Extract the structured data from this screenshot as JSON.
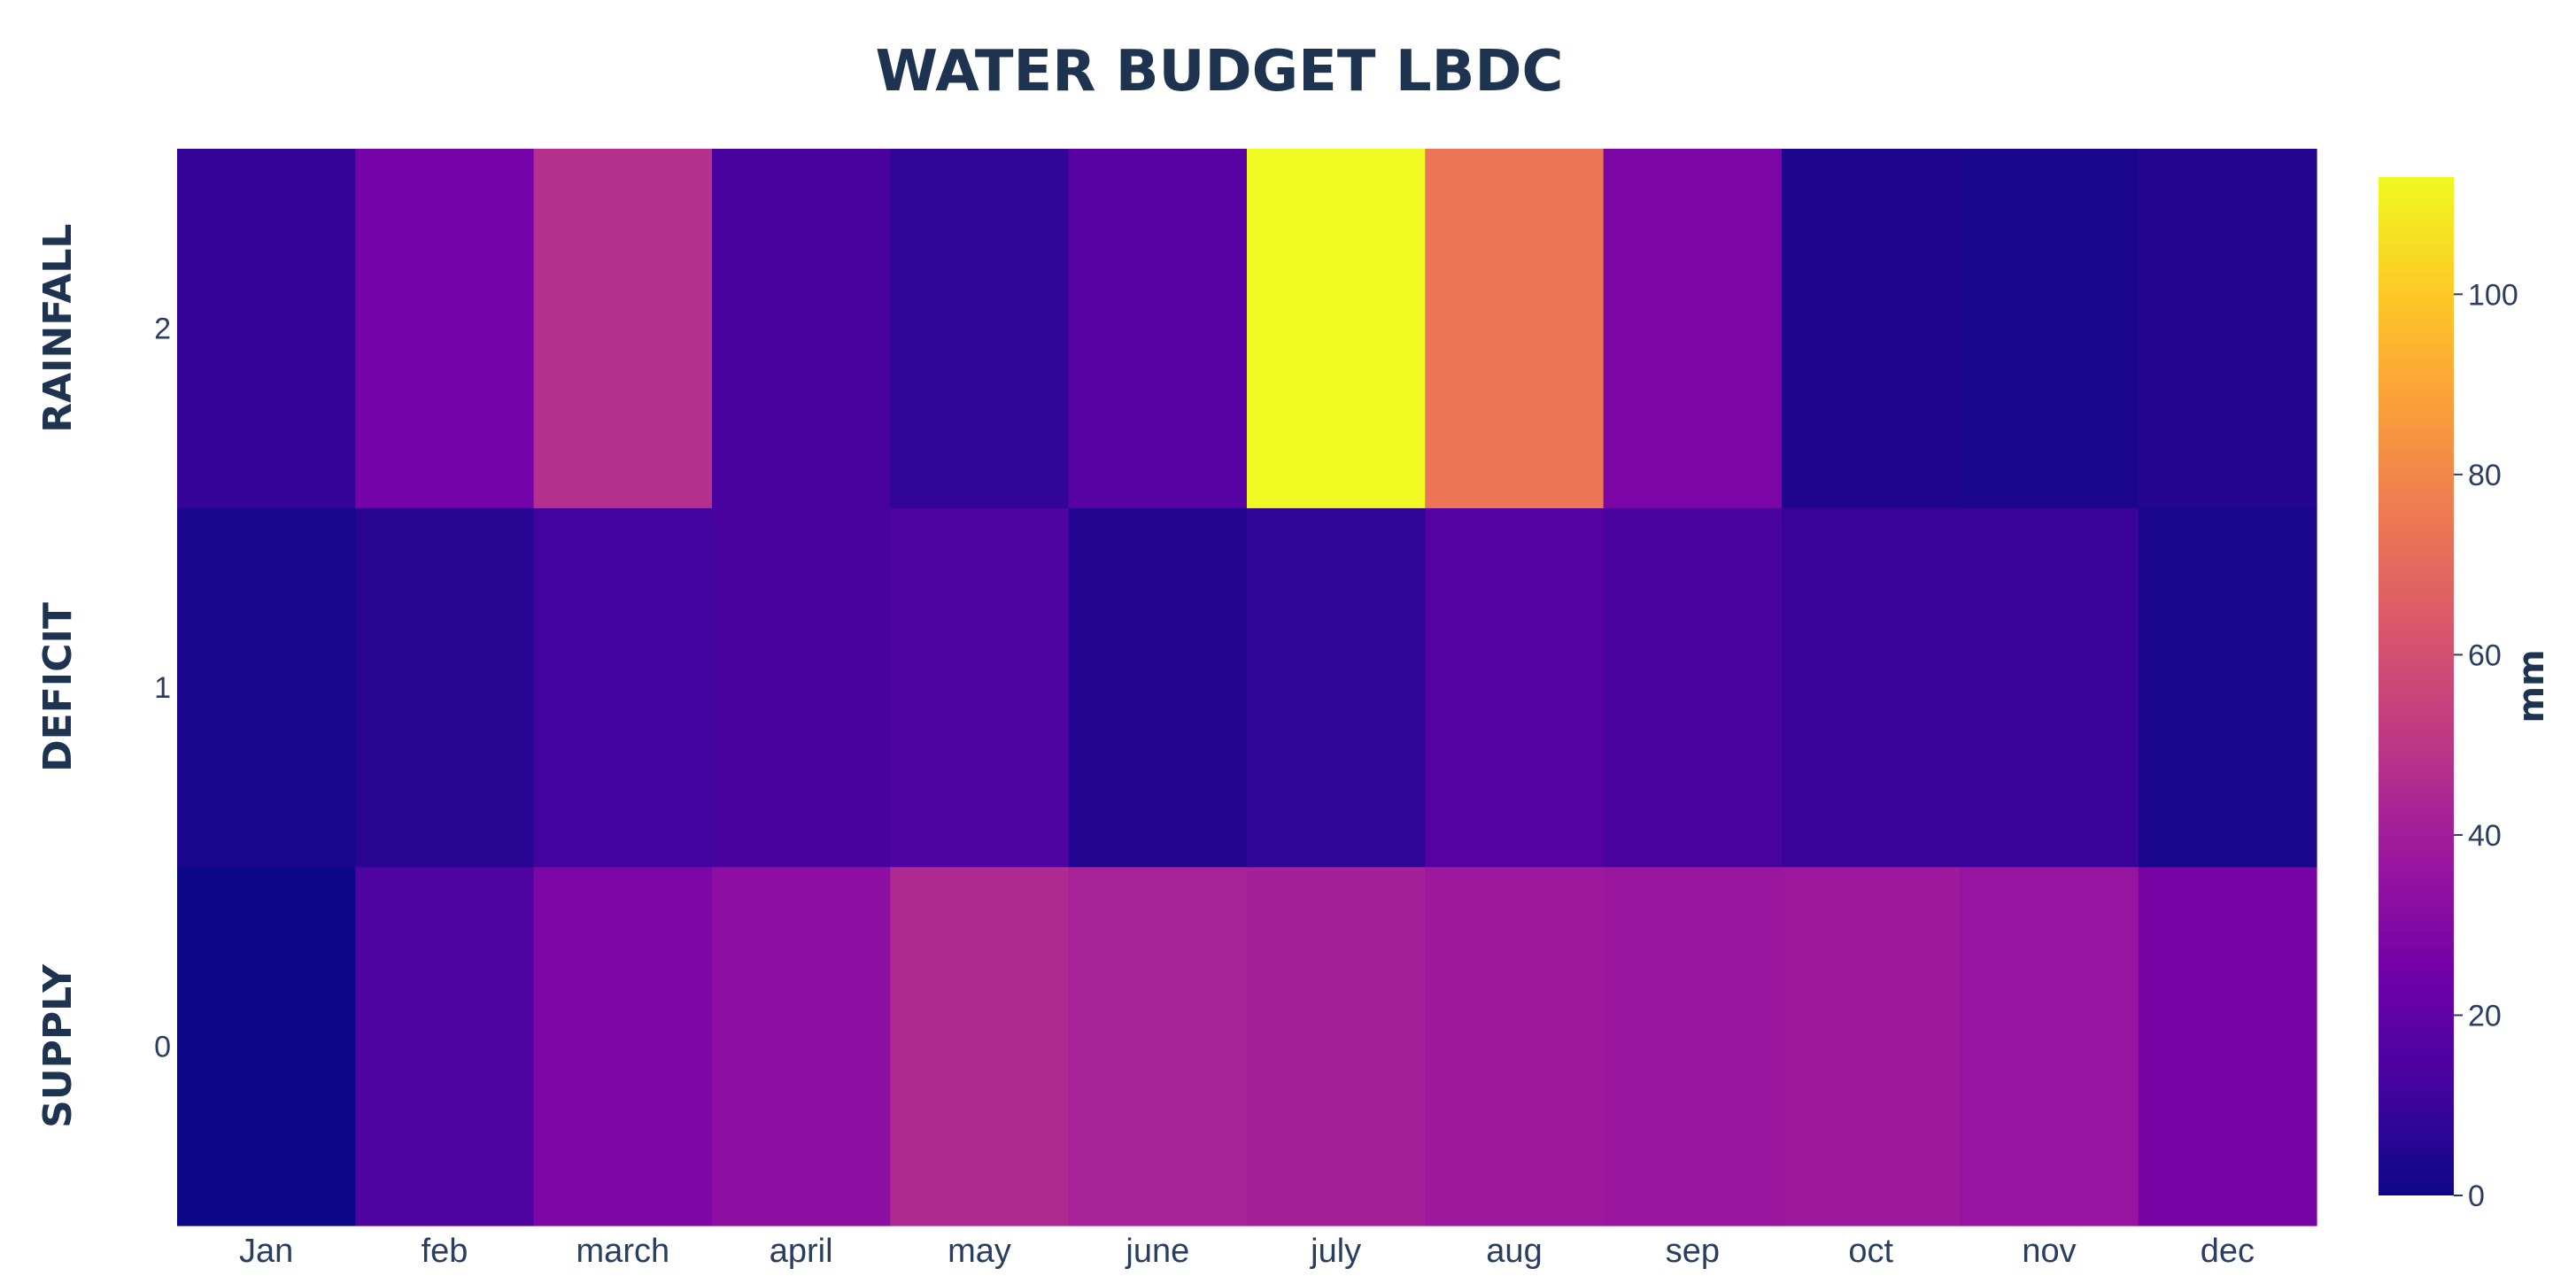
{
  "chart_data": {
    "type": "heatmap",
    "title": "WATER BUDGET LBDC",
    "x_categories": [
      "Jan",
      "feb",
      "march",
      "april",
      "may",
      "june",
      "july",
      "aug",
      "sep",
      "oct",
      "nov",
      "dec"
    ],
    "y_ticks": [
      "0",
      "1",
      "2"
    ],
    "row_labels": [
      "SUPPLY",
      "DEFICIT",
      "RAINFALL"
    ],
    "z": [
      [
        0,
        15,
        28,
        33,
        45,
        42,
        41,
        38,
        37,
        38,
        36,
        27
      ],
      [
        3,
        6,
        12,
        13,
        15,
        5,
        8,
        17,
        14,
        10,
        10,
        3
      ],
      [
        9,
        26,
        47,
        13,
        8,
        18,
        113,
        74,
        28,
        4,
        3,
        5
      ]
    ],
    "zmin": 0,
    "zmax": 113,
    "colorscale": [
      "#0d0887",
      "#46039f",
      "#7201a8",
      "#9c179e",
      "#bd3786",
      "#d8576b",
      "#ed7953",
      "#fb9f3a",
      "#fdca26",
      "#f0f921"
    ],
    "colorbar": {
      "title": "mm",
      "ticks": [
        "0",
        "20",
        "40",
        "60",
        "80",
        "100"
      ]
    }
  }
}
